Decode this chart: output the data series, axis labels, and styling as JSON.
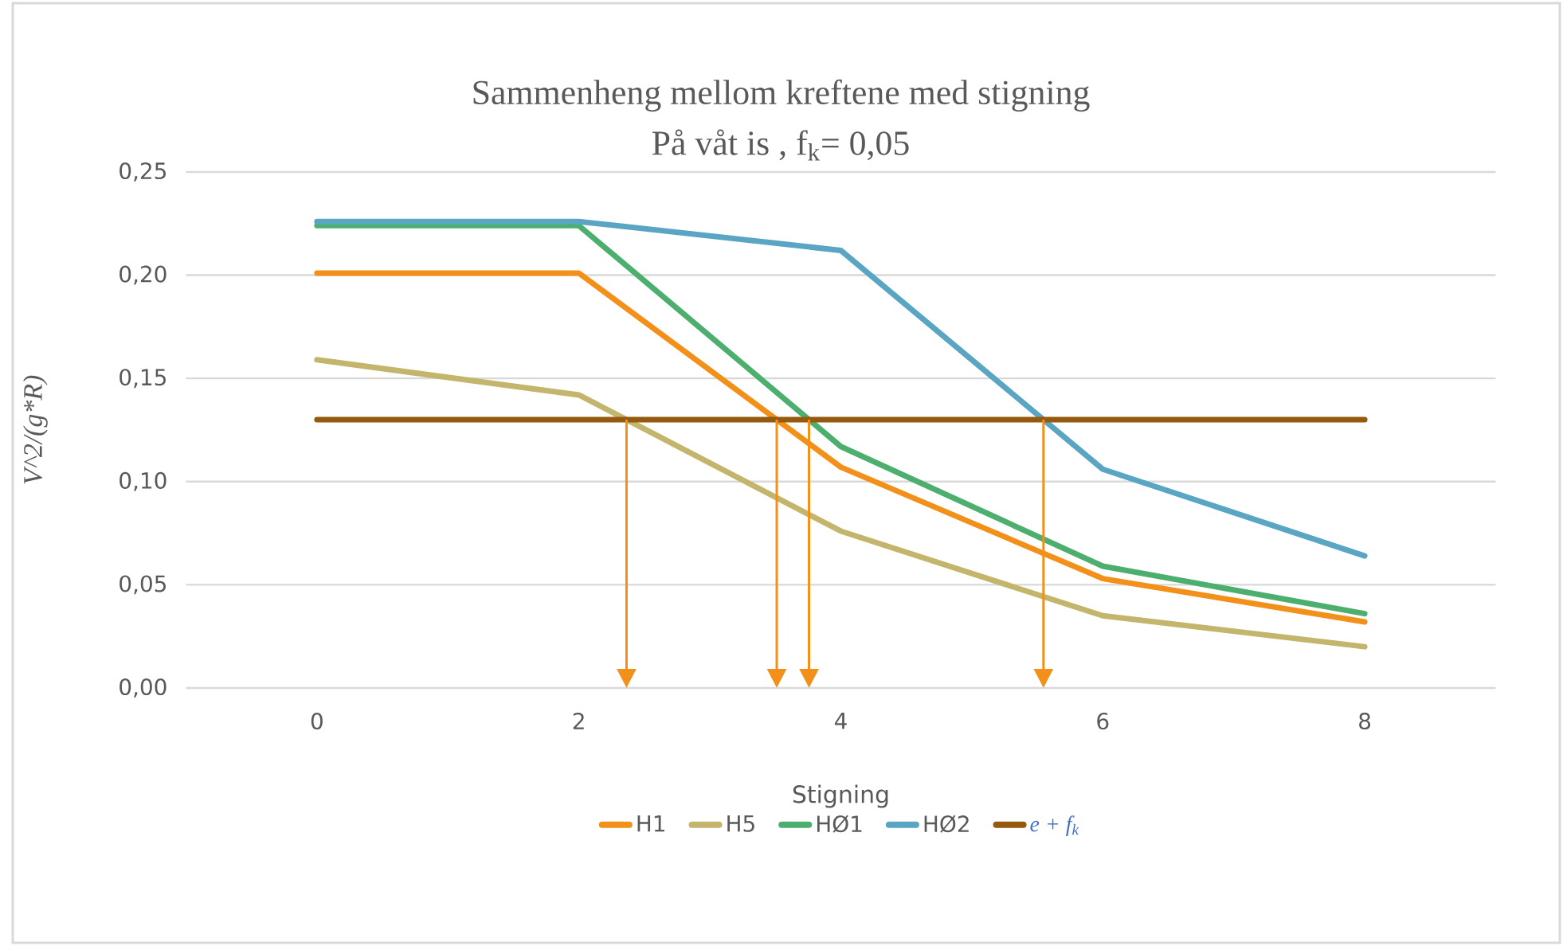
{
  "chart_data": {
    "type": "line",
    "title": "Sammenheng mellom kreftene med stigning",
    "subtitle": "På våt is , f$_{k}$= 0,05",
    "xlabel": "Stigning",
    "ylabel": "V^2/(g*R)",
    "x": [
      0,
      2,
      4,
      6,
      8
    ],
    "series": [
      {
        "name": "H1",
        "color": "#f39019",
        "values": [
          0.201,
          0.201,
          0.107,
          0.053,
          0.032
        ]
      },
      {
        "name": "H5",
        "color": "#c4b56c",
        "values": [
          0.159,
          0.142,
          0.076,
          0.035,
          0.02
        ]
      },
      {
        "name": "HØ1",
        "color": "#4caf6e",
        "values": [
          0.224,
          0.224,
          0.117,
          0.059,
          0.036
        ]
      },
      {
        "name": "HØ2",
        "color": "#5ba5c4",
        "values": [
          0.226,
          0.226,
          0.212,
          0.106,
          0.064
        ]
      }
    ],
    "ref_lines": [
      {
        "axis": "y",
        "value": 0.13,
        "label": "*e* + *f*$_{k}$",
        "color": "#955a0e"
      }
    ],
    "xlim": [
      -1,
      9
    ],
    "xticks": [
      0,
      2,
      4,
      6,
      8
    ],
    "ylim": [
      0,
      0.25
    ],
    "yticks": [
      {
        "value": 0,
        "label": "0,00"
      },
      {
        "value": 0.05,
        "label": "0,05"
      },
      {
        "value": 0.1,
        "label": "0,10"
      },
      {
        "value": 0.15,
        "label": "0,15"
      },
      {
        "value": 0.2,
        "label": "0,20"
      },
      {
        "value": 0.25,
        "label": "0,25"
      }
    ],
    "grid": "y",
    "legend": "bottom",
    "marker": "none",
    "line_style": "solid"
  }
}
